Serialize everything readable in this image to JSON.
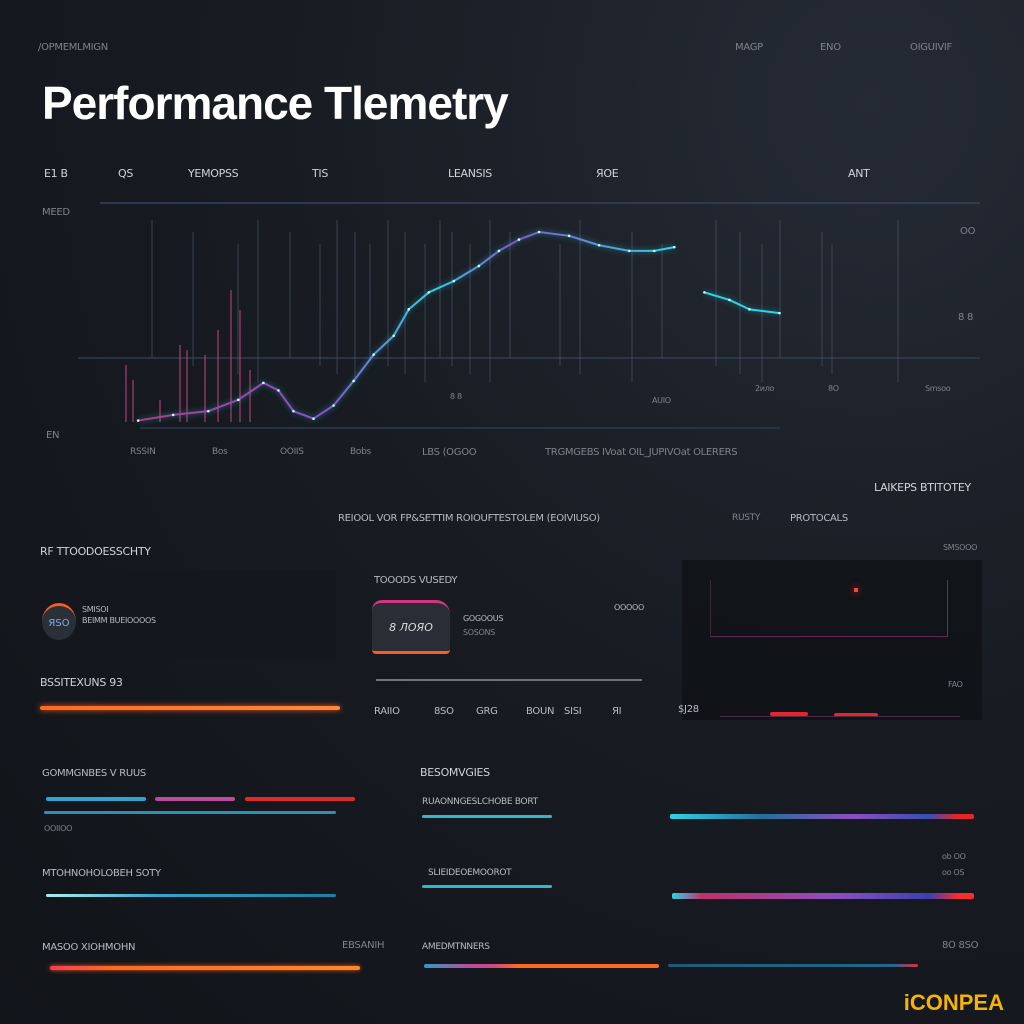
{
  "header": {
    "breadcrumb": "/OPMEMLMIGN",
    "status_items": [
      "MAGP",
      "ENO",
      "OIGUIVIF"
    ],
    "title": "Performance Tlemetry"
  },
  "tabs": [
    "E1 B",
    "QS",
    "YEMOPSS",
    "TIS",
    "LEANSIS",
    "ЯOE",
    "ANT"
  ],
  "chart_data": {
    "type": "line",
    "title": "",
    "xlabel": "",
    "ylabel": "",
    "x": [
      0,
      7,
      14,
      20,
      25,
      28,
      31,
      35,
      39,
      43,
      47,
      51,
      54,
      58,
      63,
      68,
      72,
      76,
      80,
      86,
      92,
      98,
      103,
      107,
      110,
      113,
      118,
      122,
      128
    ],
    "values": [
      0,
      3,
      5,
      11,
      20,
      16,
      5,
      1,
      8,
      21,
      35,
      45,
      59,
      68,
      74,
      82,
      90,
      96,
      100,
      98,
      93,
      90,
      90,
      92,
      null,
      68,
      64,
      59,
      57
    ],
    "xlim": [
      -12,
      168
    ],
    "ylim": [
      -5,
      117
    ],
    "grid": true,
    "y_tick_labels": [
      "MEED",
      "EN"
    ],
    "right_tick_labels": [
      "OO",
      "8 8"
    ],
    "x_tick_labels": [
      "RSSIN",
      "Bos",
      "OOIIS",
      "Bobs",
      "LBS (OGOO"
    ],
    "annotations": [
      "8 8",
      "AUIO",
      "2ило",
      "8O",
      "Smsoo"
    ],
    "legend_text": "TRGMGEBS IVoat OIL_JUPIVOat  OLERERS",
    "line_gradient": [
      "#b23a8c",
      "#8d4fd0",
      "#2fd3e6"
    ]
  },
  "section_labels": {
    "right_heading": "LAIKEPS BTITOTEY",
    "center_caption": "REIOOL VOR FP&SETTIM ROIOUFTESTOLEM (EOIVIUSO)",
    "center_caption_2": "PROTOCALS",
    "center_caption_dim": "RUSTY",
    "left_panel_title": "RF TTOODOESSCHTY",
    "gauge_value": "ЯSO",
    "gauge_line1": "SMISOI",
    "gauge_line2": "BEIMM BUEIOOOOS",
    "mid_panel_title": "TOOODS VUSEDY",
    "card_value": "8 ЛОЯО",
    "card_line1": "GOGOOUS",
    "card_line2": "SOSONS",
    "card_right": "OOOOO",
    "right_panel_top": "SMSOOO",
    "left_bar_title": "BSSITEXUNS 93",
    "mid_row": [
      "RAIIO",
      "8SO",
      "GRG",
      "BOUN",
      "SISI",
      "ЯI"
    ],
    "right_row_value": "$J28",
    "right_row_small": "FAO"
  },
  "lower": {
    "left": [
      {
        "title": "GOMMGNBES V RUUS",
        "sub": "OOIIOO"
      },
      {
        "title": "MTOHNOHOLOBEH SOTY",
        "sub": ""
      },
      {
        "title": "MASOO XIOHMOHN",
        "sub": "EBSANIH"
      }
    ],
    "right_heading": "BESOMVGIES",
    "right": [
      {
        "title": "RUAONNGESLCHOBE BORT",
        "value": "ob OO"
      },
      {
        "title": "SLIEIDEOEMOOROT",
        "value": "oo OS"
      },
      {
        "title": "AMEDMTNNERS",
        "value": "8O 8SO"
      }
    ]
  },
  "colors": {
    "cyan": "#2fc6e6",
    "magenta": "#c04a9a",
    "orange": "#ff6a1f",
    "red": "#f02a2a",
    "purple": "#7a4fd6",
    "background": "#161a20"
  },
  "watermark": "iCONPEA"
}
